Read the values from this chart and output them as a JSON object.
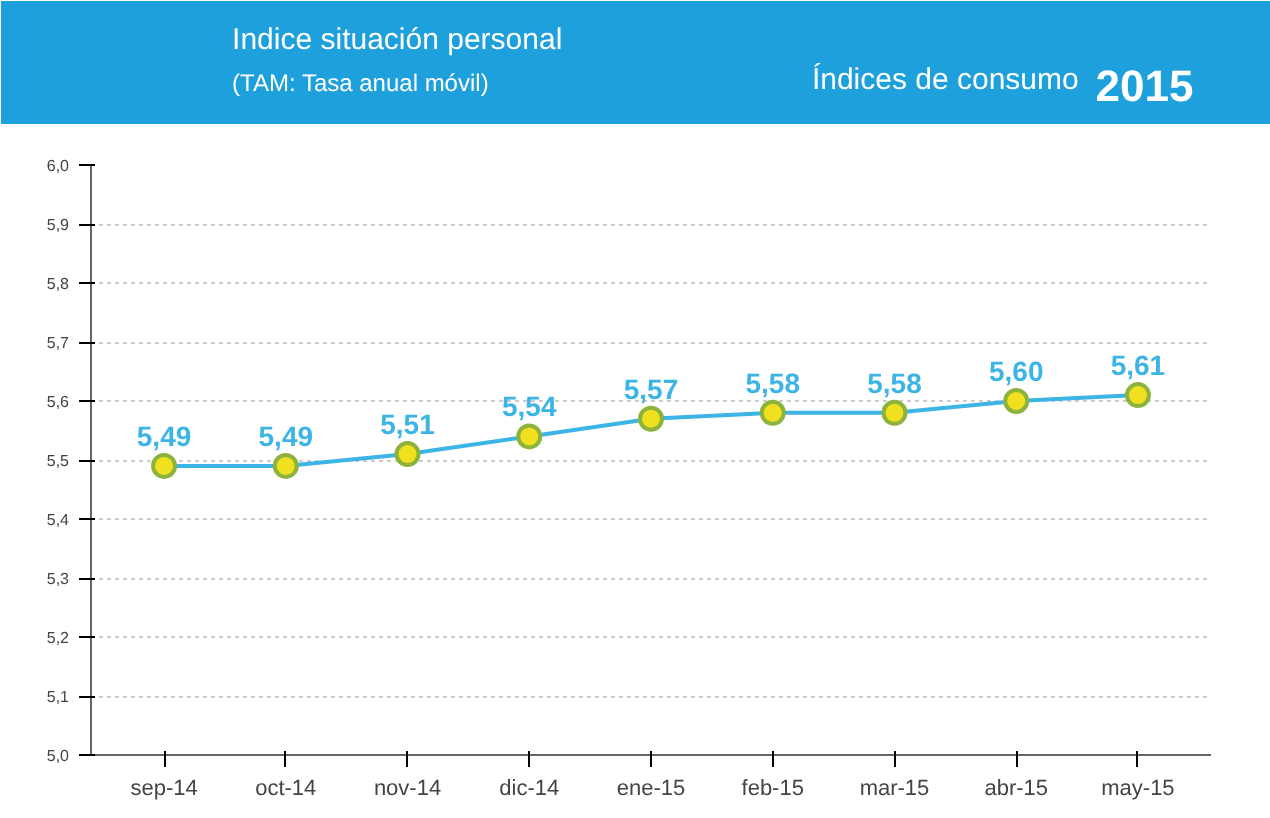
{
  "chart_data": {
    "type": "line",
    "title": "Indice situación personal",
    "subtitle": "(TAM: Tasa anual móvil)",
    "annotations": [
      "Índices de consumo",
      "2015"
    ],
    "categories": [
      "sep-14",
      "oct-14",
      "nov-14",
      "dic-14",
      "ene-15",
      "feb-15",
      "mar-15",
      "abr-15",
      "may-15"
    ],
    "series": [
      {
        "color": "#3cb4e5",
        "values": [
          5.49,
          5.49,
          5.51,
          5.54,
          5.57,
          5.58,
          5.58,
          5.6,
          5.61
        ],
        "value_labels": [
          "5,49",
          "5,49",
          "5,51",
          "5,54",
          "5,57",
          "5,58",
          "5,58",
          "5,60",
          "5,61"
        ]
      }
    ],
    "ylim": [
      5.0,
      6.0
    ],
    "yticks": [
      {
        "value": 5.0,
        "label": "5,0"
      },
      {
        "value": 5.1,
        "label": "5,1"
      },
      {
        "value": 5.2,
        "label": "5,2"
      },
      {
        "value": 5.3,
        "label": "5,3"
      },
      {
        "value": 5.4,
        "label": "5,4"
      },
      {
        "value": 5.5,
        "label": "5,5"
      },
      {
        "value": 5.6,
        "label": "5,6"
      },
      {
        "value": 5.7,
        "label": "5,7"
      },
      {
        "value": 5.8,
        "label": "5,8"
      },
      {
        "value": 5.9,
        "label": "5,9"
      },
      {
        "value": 6.0,
        "label": "6,0"
      }
    ],
    "grid": "y",
    "marker": "circle"
  }
}
